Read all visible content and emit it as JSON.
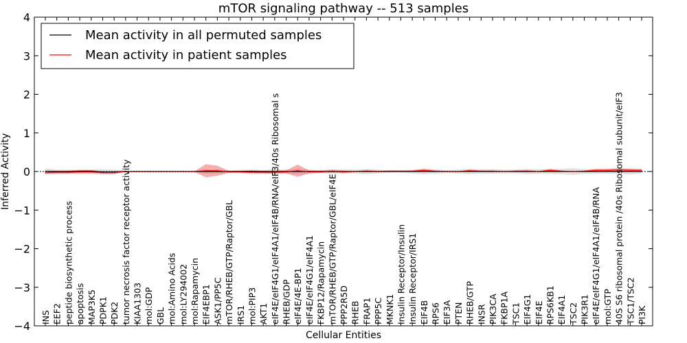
{
  "chart_data": {
    "type": "area",
    "title": "mTOR signaling pathway -- 513 samples",
    "xlabel": "Cellular Entities",
    "ylabel": "Inferred Activity",
    "ylim": [
      -4,
      4
    ],
    "yticks": [
      -4,
      -3,
      -2,
      -1,
      0,
      1,
      2,
      3,
      4
    ],
    "ytick_labels": [
      "−4",
      "−3",
      "−2",
      "−1",
      "0",
      "1",
      "2",
      "3",
      "4"
    ],
    "legend": {
      "position": "top-left",
      "entries": [
        {
          "label": "Mean activity in all permuted samples",
          "color": "#000000"
        },
        {
          "label": "Mean activity in patient samples",
          "color": "#ff0000"
        }
      ]
    },
    "categories": [
      "INS",
      "EEF2",
      "peptide biosynthetic process",
      "apoptosis",
      "MAP3K5",
      "PDPK1",
      "PDK2",
      "tumor necrosis factor receptor activity",
      "KIAA1303",
      "mol:GDP",
      "GBL",
      "mol:Amino Acids",
      "mol:LY294002",
      "mol:Rapamycin",
      "EIF4EBP1",
      "ASK1/PP5C",
      "mTOR/RHEB/GTP/Raptor/GBL",
      "IRS1",
      "mol:PIP3",
      "AKT1",
      "eIF4E/eIF4G1/eIF4A1/eIF4B/RNA/eIF3/40s Ribosomal s",
      "RHEB/GDP",
      "eIF4E/4E-BP1",
      "eIF4E/eIF4G1/eIF4A1",
      "FKBP12/Rapamycin",
      "mTOR/RHEB/GTP/Raptor/GBL/eIF4E",
      "PPP2R5D",
      "RHEB",
      "FRAP1",
      "PPP5C",
      "MKNK1",
      "Insulin Receptor/Insulin",
      "Insulin Receptor/IRS1",
      "EIF4B",
      "RPS6",
      "EIF3A",
      "PTEN",
      "RHEB/GTP",
      "INSR",
      "PIK3CA",
      "FKBP1A",
      "TSC1",
      "EIF4G1",
      "EIF4E",
      "RPS6KB1",
      "EIF4A1",
      "TSC2",
      "PIK3R1",
      "eIF4E/eIF4G1/eIF4A1/eIF4B/RNA",
      "mol:GTP",
      "40S S6 ribosomal protein /40s Ribosomal subunit/eIF3",
      "TSC1/TSC2",
      "PI3K"
    ],
    "series": [
      {
        "name": "Mean activity in all permuted samples",
        "color": "#000000",
        "values": [
          0.01,
          0.0,
          0.0,
          0.01,
          0.01,
          -0.01,
          -0.01,
          0.0,
          0.0,
          0.0,
          0.0,
          0.0,
          0.0,
          0.0,
          0.0,
          0.0,
          0.0,
          0.0,
          0.01,
          0.0,
          0.0,
          0.0,
          0.0,
          0.0,
          0.0,
          0.0,
          0.0,
          0.0,
          0.0,
          0.0,
          0.0,
          0.0,
          0.0,
          0.0,
          0.0,
          0.0,
          0.0,
          0.0,
          0.0,
          0.0,
          0.0,
          0.0,
          0.0,
          0.0,
          0.0,
          0.0,
          0.0,
          0.0,
          0.0,
          0.0,
          0.0,
          0.0,
          0.0
        ],
        "band": [
          0.07,
          0.05,
          0.05,
          0.04,
          0.04,
          0.07,
          0.06,
          0.02,
          0.02,
          0.02,
          0.02,
          0.02,
          0.02,
          0.02,
          0.05,
          0.05,
          0.03,
          0.04,
          0.04,
          0.04,
          0.06,
          0.05,
          0.06,
          0.05,
          0.04,
          0.05,
          0.06,
          0.05,
          0.07,
          0.05,
          0.03,
          0.03,
          0.05,
          0.07,
          0.06,
          0.04,
          0.05,
          0.07,
          0.06,
          0.06,
          0.05,
          0.05,
          0.07,
          0.06,
          0.06,
          0.07,
          0.09,
          0.06,
          0.06,
          0.06,
          0.06,
          0.08,
          0.05
        ]
      },
      {
        "name": "Mean activity in patient samples",
        "color": "#ff0000",
        "values": [
          -0.03,
          -0.02,
          -0.02,
          -0.01,
          -0.01,
          -0.03,
          -0.03,
          0.0,
          0.0,
          0.0,
          0.0,
          0.0,
          0.0,
          0.0,
          0.02,
          0.02,
          -0.01,
          -0.01,
          -0.02,
          -0.02,
          -0.02,
          -0.01,
          0.02,
          -0.01,
          -0.01,
          0.01,
          -0.01,
          0.0,
          0.01,
          0.0,
          0.01,
          0.01,
          0.01,
          0.03,
          0.01,
          0.0,
          0.0,
          0.02,
          0.01,
          0.01,
          0.0,
          0.01,
          0.01,
          0.0,
          0.03,
          0.01,
          0.0,
          0.01,
          0.03,
          0.03,
          0.04,
          0.03,
          0.03
        ],
        "band": [
          0.04,
          0.04,
          0.04,
          0.05,
          0.05,
          0.03,
          0.03,
          0.01,
          0.01,
          0.01,
          0.01,
          0.01,
          0.01,
          0.01,
          0.17,
          0.13,
          0.03,
          0.03,
          0.04,
          0.04,
          0.04,
          0.04,
          0.16,
          0.04,
          0.03,
          0.04,
          0.03,
          0.01,
          0.03,
          0.02,
          0.02,
          0.02,
          0.02,
          0.04,
          0.02,
          0.01,
          0.01,
          0.03,
          0.02,
          0.02,
          0.01,
          0.02,
          0.03,
          0.01,
          0.04,
          0.02,
          0.01,
          0.02,
          0.04,
          0.04,
          0.05,
          0.04,
          0.04
        ]
      }
    ]
  }
}
